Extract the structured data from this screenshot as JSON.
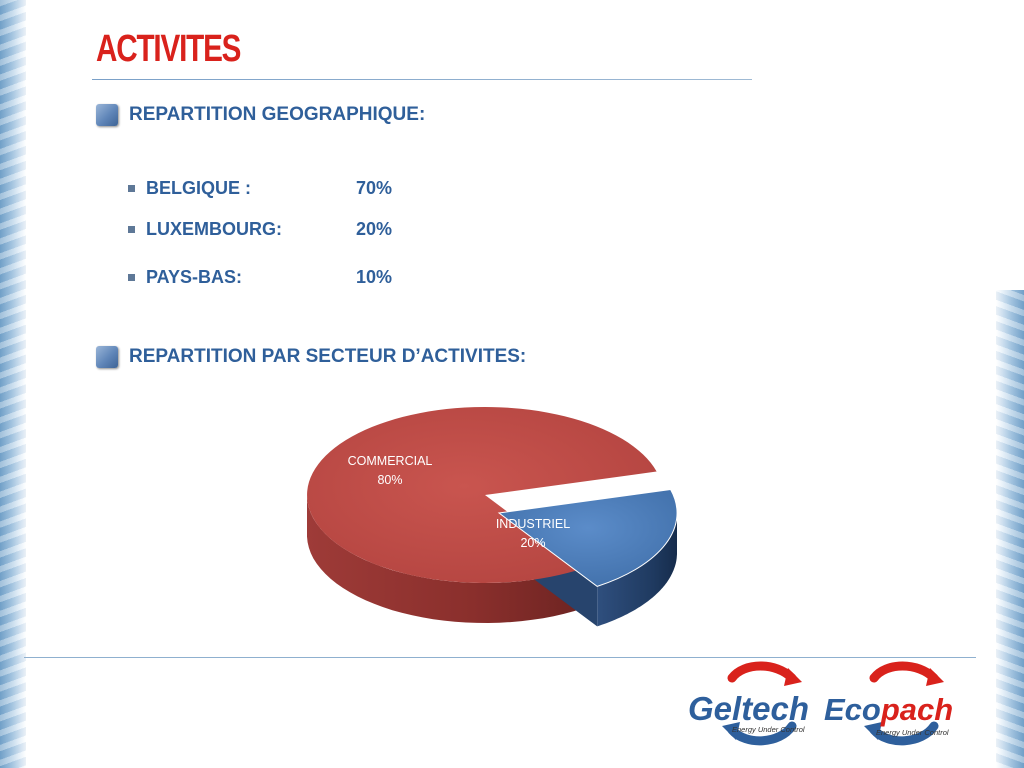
{
  "slide": {
    "title": "ACTIVITES"
  },
  "geo_section": {
    "heading": "REPARTITION GEOGRAPHIQUE:",
    "items": [
      {
        "label": "BELGIQUE :",
        "value": "70%"
      },
      {
        "label": "LUXEMBOURG:",
        "value": "20%"
      },
      {
        "label": "PAYS-BAS:",
        "value": "10%"
      }
    ]
  },
  "sector_section": {
    "heading": "REPARTITION PAR SECTEUR D’ACTIVITES:"
  },
  "chart_data": {
    "type": "pie",
    "style": "3d",
    "slices": [
      {
        "label": "COMMERCIAL",
        "value": 80,
        "value_label": "80%",
        "color": "#c0504d"
      },
      {
        "label": "INDUSTRIEL",
        "value": 20,
        "value_label": "20%",
        "color": "#4f81bd"
      }
    ],
    "legend": "none"
  },
  "logos": {
    "geltech": {
      "name": "Geltech",
      "tagline": "Energy Under Control"
    },
    "ecopach": {
      "name_part1": "Eco",
      "name_part2": "pach",
      "tagline": "Energy Under Control"
    }
  },
  "colors": {
    "title": "#d9221c",
    "text": "#2f5f9a",
    "rule": "#8fb0cf"
  }
}
